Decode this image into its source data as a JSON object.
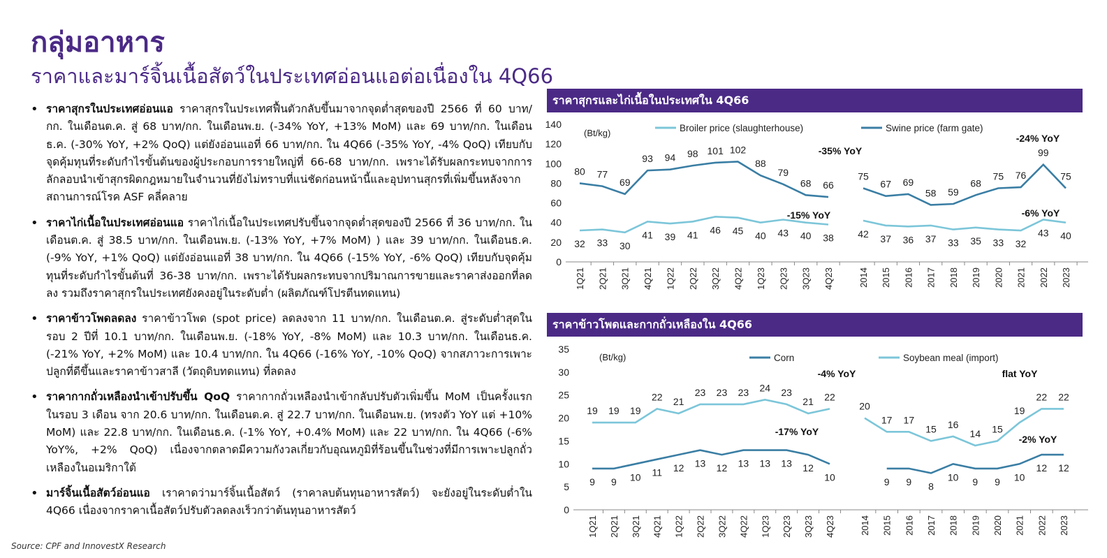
{
  "title": "กลุ่มอาหาร",
  "subtitle": "ราคาและมาร์จิ้นเนื้อสัตว์ในประเทศอ่อนแอต่อเนื่องใน 4Q66",
  "bullets": [
    {
      "head": "ราคาสุกรในประเทศอ่อนแอ",
      "text": " ราคาสุกรในประเทศฟื้นตัวกลับขึ้นมาจากจุดต่ำสุดของปี 2566 ที่ 60 บาท/กก. ในเดือนต.ค. สู่ 68 บาท/กก. ในเดือนพ.ย. (-34% YoY, +13% MoM) และ 69 บาท/กก. ในเดือนธ.ค. (-30% YoY, +2% QoQ) แต่ยังอ่อนแอที่ 66 บาท/กก. ใน 4Q66 (-35% YoY, -4% QoQ) เทียบกับจุดคุ้มทุนที่ระดับกำไรขั้นต้นของผู้ประกอบการรายใหญ่ที่ 66-68 บาท/กก. เพราะได้รับผลกระทบจากการลักลอบนำเข้าสุกรผิดกฎหมายในจำนวนที่ยังไม่ทราบที่แน่ชัดก่อนหน้านี้และอุปทานสุกรที่เพิ่มขึ้นหลังจากสถานการณ์โรค ASF คลี่คลาย"
    },
    {
      "head": "ราคาไก่เนื้อในประเทศอ่อนแอ",
      "text": " ราคาไก่เนื้อในประเทศปรับขึ้นจากจุดต่ำสุดของปี 2566 ที่ 36 บาท/กก. ในเดือนต.ค. สู่ 38.5 บาท/กก. ในเดือนพ.ย. (-13% YoY, +7% MoM) ) และ 39 บาท/กก. ในเดือนธ.ค. (-9% YoY, +1% QoQ) แต่ยังอ่อนแอที่ 38 บาท/กก. ใน 4Q66 (-15% YoY, -6% QoQ) เทียบกับจุดคุ้มทุนที่ระดับกำไรขั้นต้นที่ 36-38 บาท/กก. เพราะได้รับผลกระทบจากปริมาณการขายและราคาส่งออกที่ลดลง รวมถึงราคาสุกรในประเทศยังคงอยู่ในระดับต่ำ (ผลิตภัณฑ์โปรตีนทดแทน)"
    },
    {
      "head": "ราคาข้าวโพดลดลง",
      "text": " ราคาข้าวโพด (spot price) ลดลงจาก 11 บาท/กก. ในเดือนต.ค. สู่ระดับต่ำสุดในรอบ 2 ปีที่ 10.1 บาท/กก. ในเดือนพ.ย. (-18% YoY, -8% MoM) และ 10.3 บาท/กก. ในเดือนธ.ค. (-21% YoY, +2% MoM) และ 10.4 บาท/กก. ใน 4Q66 (-16% YoY, -10% QoQ) จากสภาวะการเพาะปลูกที่ดีขึ้นและราคาข้าวสาลี (วัตถุดิบทดแทน) ที่ลดลง"
    },
    {
      "head": "ราคากากถั่วเหลืองนำเข้าปรับขึ้น QoQ",
      "text": " ราคากากถั่วเหลืองนำเข้ากลับปรับตัวเพิ่มขึ้น MoM เป็นครั้งแรกในรอบ 3 เดือน จาก 20.6 บาท/กก. ในเดือนต.ค. สู่ 22.7 บาท/กก. ในเดือนพ.ย. (ทรงตัว YoY แต่ +10% MoM) และ 22.8 บาท/กก. ในเดือนธ.ค. (-1% YoY, +0.4% MoM) และ 22 บาท/กก. ใน 4Q66 (-6% YoY%, +2% QoQ) เนื่องจากตลาดมีความกังวลเกี่ยวกับอุณหภูมิที่ร้อนขึ้นในช่วงที่มีการเพาะปลูกถั่วเหลืองในอเมริกาใต้"
    },
    {
      "head": "มาร์จิ้นเนื้อสัตว์อ่อนแอ",
      "text": " เราคาดว่ามาร์จิ้นเนื้อสัตว์ (ราคาลบต้นทุนอาหารสัตว์) จะยังอยู่ในระดับต่ำใน 4Q66 เนื่องจากราคาเนื้อสัตว์ปรับตัวลดลงเร็วกว่าต้นทุนอาหารสัตว์"
    }
  ],
  "source": "Source: CPF and InnovestX Research",
  "colors": {
    "purple": "#4b2a86",
    "dark_line": "#3a7ea4",
    "light_line": "#7cc6d9"
  },
  "chart_data": [
    {
      "type": "line",
      "title": "ราคาสุกรและไก่เนื้อในประเทศใน 4Q66",
      "unit_label": "(Bt/kg)",
      "ylim": [
        0,
        140
      ],
      "yticks": [
        0,
        20,
        40,
        60,
        80,
        100,
        120,
        140
      ],
      "quarterly": {
        "categories": [
          "1Q21",
          "2Q21",
          "3Q21",
          "4Q21",
          "1Q22",
          "2Q22",
          "3Q22",
          "4Q22",
          "1Q23",
          "2Q23",
          "3Q23",
          "4Q23"
        ],
        "series": [
          {
            "name": "Broiler price (slaughterhouse)",
            "color": "#7cc6d9",
            "values": [
              32,
              33,
              30,
              41,
              39,
              41,
              46,
              45,
              40,
              43,
              40,
              38
            ]
          },
          {
            "name": "Swine price (farm gate)",
            "color": "#3a7ea4",
            "values": [
              80,
              77,
              69,
              93,
              94,
              98,
              101,
              102,
              88,
              79,
              68,
              66
            ]
          }
        ],
        "annotations": [
          "-35% YoY",
          "-15% YoY"
        ]
      },
      "annual": {
        "categories": [
          "2014",
          "2015",
          "2016",
          "2017",
          "2018",
          "2019",
          "2020",
          "2021",
          "2022",
          "2023"
        ],
        "series": [
          {
            "name": "Broiler price (slaughterhouse)",
            "color": "#7cc6d9",
            "values": [
              42,
              37,
              36,
              37,
              33,
              35,
              33,
              32,
              43,
              40
            ]
          },
          {
            "name": "Swine price (farm gate)",
            "color": "#3a7ea4",
            "values": [
              75,
              67,
              69,
              58,
              59,
              68,
              75,
              76,
              99,
              75
            ]
          }
        ],
        "annotations": [
          "-24% YoY",
          "-6% YoY"
        ]
      }
    },
    {
      "type": "line",
      "title": "ราคาข้าวโพดและกากถั่วเหลืองใน 4Q66",
      "unit_label": "(Bt/kg)",
      "ylim": [
        0,
        35
      ],
      "yticks": [
        0,
        5,
        10,
        15,
        20,
        25,
        30,
        35
      ],
      "quarterly": {
        "categories": [
          "1Q21",
          "2Q21",
          "3Q21",
          "4Q21",
          "1Q22",
          "2Q22",
          "3Q22",
          "4Q22",
          "1Q23",
          "2Q23",
          "3Q23",
          "4Q23"
        ],
        "series": [
          {
            "name": "Corn",
            "color": "#3a7ea4",
            "values": [
              9,
              9,
              10,
              11,
              12,
              13,
              12,
              13,
              13,
              13,
              12,
              10
            ]
          },
          {
            "name": "Soybean meal (import)",
            "color": "#7cc6d9",
            "values": [
              19,
              19,
              19,
              22,
              21,
              23,
              23,
              23,
              24,
              23,
              21,
              22
            ]
          }
        ],
        "annotations": [
          "-4% YoY",
          "-17% YoY"
        ]
      },
      "annual": {
        "categories": [
          "2014",
          "2015",
          "2016",
          "2017",
          "2018",
          "2019",
          "2020",
          "2021",
          "2022",
          "2023"
        ],
        "series": [
          {
            "name": "Corn",
            "color": "#3a7ea4",
            "values": [
              null,
              9,
              9,
              8,
              10,
              9,
              9,
              10,
              12,
              12
            ]
          },
          {
            "name": "Soybean meal (import)",
            "color": "#7cc6d9",
            "values": [
              20,
              17,
              17,
              15,
              16,
              14,
              15,
              19,
              22,
              22
            ]
          }
        ],
        "annotations": [
          "flat YoY",
          "-2% YoY"
        ]
      }
    }
  ]
}
